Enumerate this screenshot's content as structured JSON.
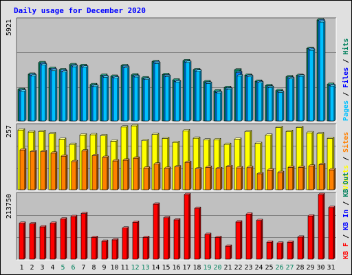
{
  "title": "Daily usage for December 2020",
  "colors": {
    "pages": "#00c0ff",
    "files": "#0080ff",
    "hits": "#00805c",
    "visits": "#ffff00",
    "sites": "#ff8000",
    "kbin": "#00805c",
    "kbout": "#0000ff",
    "kbf": "#ff0000",
    "plot_bg": "#c0c0c0",
    "frame_bg": "#e0e0e0",
    "title": "#0000ff",
    "weekend_label": "#00805c"
  },
  "chart_data": [
    {
      "type": "bar",
      "panel": "top",
      "ymax_label": "5921",
      "ylim": [
        0,
        5921
      ],
      "right_labels": [
        {
          "text": "Pages",
          "color": "#00c0ff"
        },
        {
          "text": " / ",
          "color": "#000000"
        },
        {
          "text": "Files",
          "color": "#0000ff"
        },
        {
          "text": " / ",
          "color": "#000000"
        },
        {
          "text": "Hits",
          "color": "#00805c"
        }
      ],
      "categories": [
        "1",
        "2",
        "3",
        "4",
        "5",
        "6",
        "7",
        "8",
        "9",
        "10",
        "11",
        "12",
        "13",
        "14",
        "15",
        "16",
        "17",
        "18",
        "19",
        "20",
        "21",
        "22",
        "23",
        "24",
        "25",
        "26",
        "27",
        "28",
        "29",
        "30",
        "31"
      ],
      "weekend": [
        "5",
        "6",
        "12",
        "13",
        "19",
        "20",
        "26",
        "27"
      ],
      "series": [
        {
          "name": "Hits",
          "values": [
            1850,
            2740,
            3420,
            3080,
            3000,
            3300,
            3250,
            2130,
            2680,
            2620,
            3240,
            2700,
            2530,
            3480,
            2720,
            2400,
            3530,
            3000,
            2300,
            1760,
            1960,
            2990,
            2680,
            2330,
            2070,
            1780,
            2590,
            2670,
            4250,
            5921,
            2150
          ]
        },
        {
          "name": "Files",
          "values": [
            1780,
            2690,
            3350,
            3010,
            2930,
            3230,
            3180,
            2050,
            2600,
            2550,
            3170,
            2620,
            2460,
            3420,
            2640,
            2320,
            3460,
            2940,
            2230,
            1680,
            1880,
            2830,
            2630,
            2270,
            1990,
            1700,
            2510,
            2640,
            4200,
            5870,
            2080
          ]
        },
        {
          "name": "Pages",
          "values": [
            1750,
            2640,
            3280,
            2950,
            2870,
            3180,
            3150,
            2020,
            2560,
            2510,
            3120,
            2580,
            2430,
            3370,
            2600,
            2290,
            3430,
            2910,
            2200,
            1650,
            1850,
            2640,
            2590,
            2230,
            1960,
            1670,
            2470,
            2620,
            4150,
            5800,
            2050
          ]
        }
      ]
    },
    {
      "type": "bar",
      "panel": "middle",
      "ymax_label": "257",
      "ylim": [
        0,
        257
      ],
      "right_labels": [
        {
          "text": "Visits",
          "color": "#ffff00"
        },
        {
          "text": " / ",
          "color": "#000000"
        },
        {
          "text": "Sites",
          "color": "#ff8000"
        }
      ],
      "categories": [
        "1",
        "2",
        "3",
        "4",
        "5",
        "6",
        "7",
        "8",
        "9",
        "10",
        "11",
        "12",
        "13",
        "14",
        "15",
        "16",
        "17",
        "18",
        "19",
        "20",
        "21",
        "22",
        "23",
        "24",
        "25",
        "26",
        "27",
        "28",
        "29",
        "30",
        "31"
      ],
      "series": [
        {
          "name": "Visits",
          "values": [
            240,
            232,
            234,
            225,
            203,
            182,
            220,
            221,
            217,
            195,
            252,
            257,
            197,
            222,
            206,
            190,
            237,
            207,
            200,
            201,
            182,
            203,
            233,
            186,
            219,
            250,
            234,
            250,
            229,
            225,
            206
          ]
        },
        {
          "name": "Sites",
          "values": [
            160,
            153,
            153,
            147,
            135,
            113,
            156,
            137,
            130,
            116,
            119,
            127,
            87,
            103,
            86,
            92,
            110,
            84,
            90,
            85,
            93,
            88,
            89,
            64,
            79,
            69,
            90,
            90,
            95,
            101,
            80
          ]
        }
      ]
    },
    {
      "type": "bar",
      "panel": "bottom",
      "ymax_label": "213750",
      "ylim": [
        0,
        213750
      ],
      "right_labels": [
        {
          "text": "KB F",
          "color": "#ff0000"
        },
        {
          "text": " / ",
          "color": "#000000"
        },
        {
          "text": "KB In",
          "color": "#0000ff"
        },
        {
          "text": " / ",
          "color": "#000000"
        },
        {
          "text": "KB Out",
          "color": "#00805c"
        }
      ],
      "categories": [
        "1",
        "2",
        "3",
        "4",
        "5",
        "6",
        "7",
        "8",
        "9",
        "10",
        "11",
        "12",
        "13",
        "14",
        "15",
        "16",
        "17",
        "18",
        "19",
        "20",
        "21",
        "22",
        "23",
        "24",
        "25",
        "26",
        "27",
        "28",
        "29",
        "30",
        "31"
      ],
      "series": [
        {
          "name": "KB F",
          "values": [
            119000,
            117000,
            107000,
            119000,
            133000,
            141000,
            151000,
            72000,
            59000,
            64000,
            103000,
            122000,
            72000,
            182000,
            137000,
            130000,
            213750,
            168000,
            82000,
            72000,
            43000,
            123000,
            149000,
            128000,
            56000,
            53000,
            56000,
            73000,
            143000,
            213750,
            171000
          ]
        }
      ]
    }
  ]
}
